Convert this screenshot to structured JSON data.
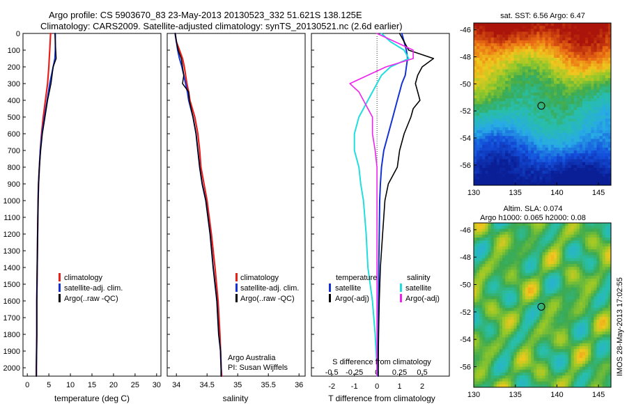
{
  "header": {
    "line1": "Argo profile: CS 5903670_83 23-May-2013 20130523_332 51.621S 138.125E",
    "line2": "Climatology: CARS2009. Satellite-adjusted climatology: synTS_20130521.nc (2.6d earlier)"
  },
  "colors": {
    "climatology": "#e8201a",
    "satellite": "#1432d4",
    "argo": "#000000",
    "sat_s": "#22dddd",
    "argo_s": "#ee22ee"
  },
  "chart_data": [
    {
      "type": "line",
      "name": "temperature-panel",
      "xlabel": "temperature (deg C)",
      "ylabel": "",
      "xlim": [
        -1,
        31
      ],
      "ylim": [
        0,
        2050
      ],
      "xticks": [
        "0",
        "5",
        "10",
        "15",
        "20",
        "25",
        "30"
      ],
      "yticks": [
        "0",
        "100",
        "200",
        "300",
        "400",
        "500",
        "600",
        "700",
        "800",
        "900",
        "1000",
        "1100",
        "1200",
        "1300",
        "1400",
        "1500",
        "1600",
        "1700",
        "1800",
        "1900",
        "2000"
      ],
      "legend": [
        "climatology",
        "satellite-adj. clim.",
        "Argo(..raw -QC)"
      ],
      "legend_position": "lower-right",
      "y": [
        0,
        50,
        100,
        150,
        200,
        300,
        400,
        500,
        600,
        700,
        800,
        900,
        1000,
        1200,
        1400,
        1600,
        1800,
        2000,
        2050
      ],
      "series": [
        {
          "name": "climatology",
          "values": [
            5.4,
            5.3,
            5.2,
            5.1,
            5.0,
            4.7,
            4.2,
            3.7,
            3.3,
            3.0,
            2.8,
            2.6,
            2.5,
            2.4,
            2.3,
            2.2,
            2.2,
            2.1,
            2.1
          ]
        },
        {
          "name": "satellite-adj. clim.",
          "values": [
            6.5,
            6.5,
            6.5,
            6.4,
            6.0,
            5.2,
            4.6,
            4.0,
            3.4,
            3.0,
            2.8,
            2.6,
            2.5,
            2.4,
            2.3,
            2.2,
            2.2,
            2.1,
            2.1
          ]
        },
        {
          "name": "Argo(..raw -QC)",
          "values": [
            6.4,
            6.5,
            6.6,
            6.7,
            6.0,
            5.5,
            4.7,
            4.1,
            3.5,
            3.1,
            2.8,
            2.6,
            2.5,
            2.4,
            2.3,
            2.2,
            2.2,
            2.1,
            2.1
          ]
        }
      ]
    },
    {
      "type": "line",
      "name": "salinity-panel",
      "xlabel": "salinity",
      "xlim": [
        33.85,
        36.1
      ],
      "ylim": [
        0,
        2050
      ],
      "xticks": [
        "34",
        "34.5",
        "35",
        "35.5",
        "36"
      ],
      "legend": [
        "climatology",
        "satellite-adj. clim.",
        "Argo(..raw -QC)"
      ],
      "legend_position": "lower-right",
      "annotations": [
        "Argo Australia",
        "PI: Susan Wijffels"
      ],
      "y": [
        0,
        50,
        100,
        150,
        200,
        250,
        300,
        350,
        400,
        500,
        600,
        700,
        800,
        900,
        1000,
        1200,
        1400,
        1600,
        1800,
        1900,
        2000,
        2050
      ],
      "series": [
        {
          "name": "climatology",
          "values": [
            33.98,
            34.0,
            34.05,
            34.1,
            34.13,
            34.15,
            34.17,
            34.2,
            34.22,
            34.3,
            34.35,
            34.38,
            34.4,
            34.45,
            34.5,
            34.57,
            34.63,
            34.68,
            34.71,
            34.72,
            34.73,
            34.74
          ]
        },
        {
          "name": "satellite-adj. clim.",
          "values": [
            33.98,
            34.0,
            34.02,
            34.05,
            34.09,
            34.12,
            34.15,
            34.18,
            34.2,
            34.27,
            34.32,
            34.35,
            34.38,
            34.42,
            34.48,
            34.55,
            34.6,
            34.66,
            34.69,
            34.72,
            34.73,
            34.73
          ]
        },
        {
          "name": "Argo(..raw -QC)",
          "values": [
            33.98,
            34.0,
            34.03,
            34.08,
            34.1,
            34.12,
            34.1,
            34.2,
            34.21,
            34.27,
            34.32,
            34.35,
            34.38,
            34.42,
            34.48,
            34.55,
            34.6,
            34.66,
            34.69,
            34.72,
            34.73,
            34.73
          ]
        }
      ]
    },
    {
      "type": "line",
      "name": "difference-panel",
      "xlabel": "T difference from climatology",
      "xlabel_top": "S difference from climatology",
      "xlim": [
        -2.9,
        3.2
      ],
      "ylim": [
        0,
        2050
      ],
      "xticks": [
        "-2",
        "-1",
        "0",
        "1",
        "2"
      ],
      "xticks_top": [
        "-0.5",
        "-0.25",
        "0",
        "0.25",
        "0.5"
      ],
      "legend_titles": [
        "temperature",
        "salinity"
      ],
      "legend_left": [
        "satellite",
        "Argo(-adj)"
      ],
      "legend_right": [
        "satellite",
        "Argo(-adj)"
      ],
      "y": [
        0,
        50,
        100,
        150,
        200,
        250,
        300,
        350,
        400,
        450,
        500,
        600,
        700,
        800,
        900,
        1000,
        1200,
        1400,
        1600,
        1800,
        2000,
        2050
      ],
      "series": [
        {
          "name": "temperature satellite",
          "values": [
            1.1,
            1.2,
            1.3,
            1.35,
            1.3,
            1.25,
            1.1,
            1.0,
            0.9,
            0.8,
            0.7,
            0.5,
            0.3,
            0.2,
            0.15,
            0.12,
            0.1,
            0.08,
            0.07,
            0.06,
            0.05,
            0.05
          ]
        },
        {
          "name": "temperature Argo(-adj)",
          "values": [
            1.0,
            1.2,
            1.4,
            2.5,
            2.0,
            1.8,
            1.7,
            1.8,
            1.9,
            1.6,
            1.5,
            1.2,
            1.0,
            0.9,
            0.5,
            0.35,
            0.25,
            0.15,
            0.1,
            0.07,
            0.05,
            0.05
          ]
        },
        {
          "name": "salinity satellite",
          "values": [
            0.05,
            0.15,
            0.3,
            0.35,
            0.15,
            0.05,
            0.0,
            -0.05,
            -0.1,
            -0.15,
            -0.2,
            -0.25,
            -0.25,
            -0.2,
            -0.18,
            -0.15,
            -0.12,
            -0.1,
            -0.05,
            -0.02,
            0.0,
            0.0
          ]
        },
        {
          "name": "salinity Argo(-adj)",
          "values": [
            0.0,
            0.2,
            0.4,
            0.4,
            0.1,
            -0.1,
            -0.3,
            -0.2,
            -0.15,
            -0.1,
            -0.05,
            -0.05,
            -0.02,
            0.0,
            0.0,
            0.0,
            0.0,
            0.0,
            0.0,
            0.0,
            0.0,
            0.0
          ]
        }
      ]
    },
    {
      "type": "heatmap",
      "name": "sst-map",
      "title": "sat. SST: 6.56 Argo: 6.47",
      "xlim": [
        130,
        146.5
      ],
      "ylim": [
        -57.5,
        -45.5
      ],
      "xticks": [
        "130",
        "135",
        "140",
        "145"
      ],
      "yticks": [
        "-46",
        "-48",
        "-50",
        "-52",
        "-54",
        "-56"
      ],
      "marker": {
        "lon": 138.125,
        "lat": -51.621
      }
    },
    {
      "type": "heatmap",
      "name": "sla-map",
      "title_line1": "Altim. SLA: 0.074",
      "title_line2": "Argo h1000: 0.065 h2000: 0.08",
      "xlim": [
        130,
        146.5
      ],
      "ylim": [
        -57.5,
        -45.5
      ],
      "xticks": [
        "130",
        "135",
        "140",
        "145"
      ],
      "yticks": [
        "-46",
        "-48",
        "-50",
        "-52",
        "-54",
        "-56"
      ],
      "marker": {
        "lon": 138.125,
        "lat": -51.621
      }
    }
  ],
  "footer": {
    "imos_stamp": "IMOS 28-May-2013 17:02:55"
  }
}
